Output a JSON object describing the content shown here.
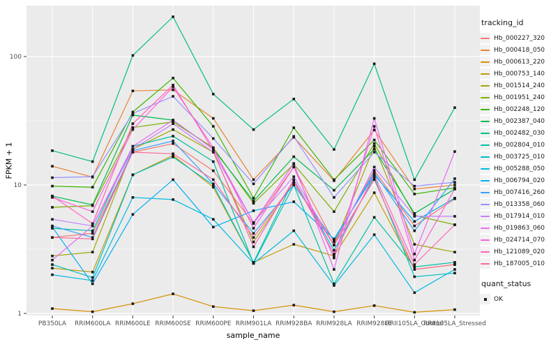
{
  "chart_data": {
    "type": "line",
    "title": "",
    "xlabel": "sample_name",
    "ylabel": "FPKM + 1",
    "y_scale": "log10",
    "ylim": [
      0.95,
      260
    ],
    "y_ticks": [
      1,
      10,
      100
    ],
    "y_minor_ticks": [
      3.1623,
      31.623
    ],
    "grid": true,
    "panel_bg": "#EBEBEB",
    "grid_color": "#FFFFFF",
    "tick_label_color": "#4D4D4D",
    "point_color": "#1a1a1a",
    "point_shape": "filled-square",
    "categories": [
      "PB350LA",
      "RRIM600LA",
      "RRIM600LE",
      "RRIM600SE",
      "RRIM600PE",
      "RRIM901LA",
      "RRIM928BA",
      "RRIM928LA",
      "RRIM928LE",
      "RRII105LA_Control",
      "RRII105LA_Stressed"
    ],
    "legend": {
      "color_title": "tracking_id",
      "shape_title": "quant_status",
      "shape_items": [
        {
          "label": "OK",
          "marker": "black-square"
        }
      ],
      "position": "right"
    },
    "series": [
      {
        "name": "Hb_000227_320",
        "color": "#F8766D",
        "values": [
          3.9,
          4.2,
          18,
          21,
          12.9,
          5.0,
          13.8,
          3.6,
          13,
          4.8,
          7.8
        ]
      },
      {
        "name": "Hb_000418_050",
        "color": "#EA8331",
        "values": [
          14,
          11.5,
          54,
          55,
          33,
          11,
          23.5,
          10.8,
          26.8,
          9.3,
          10
        ]
      },
      {
        "name": "Hb_000613_220",
        "color": "#D89000",
        "values": [
          1.09,
          1.03,
          1.19,
          1.42,
          1.13,
          1.05,
          1.16,
          1.03,
          1.15,
          1.02,
          1.07
        ]
      },
      {
        "name": "Hb_000753_140",
        "color": "#C09B00",
        "values": [
          2.25,
          2.1,
          12,
          17,
          9.6,
          2.5,
          3.45,
          2.8,
          8.7,
          2.2,
          2.4
        ]
      },
      {
        "name": "Hb_001514_240",
        "color": "#A3A500",
        "values": [
          2.8,
          3.0,
          19,
          27,
          18,
          3.6,
          10.5,
          3.4,
          20,
          3.45,
          3.0
        ]
      },
      {
        "name": "Hb_001951_240",
        "color": "#7CAE00",
        "values": [
          6.7,
          6.9,
          28,
          31,
          19.5,
          7.2,
          14.5,
          6.2,
          21,
          5.8,
          4.9
        ]
      },
      {
        "name": "Hb_002248_120",
        "color": "#39B600",
        "values": [
          9.8,
          9.6,
          37,
          68,
          28.6,
          7.9,
          27.9,
          11,
          22.4,
          8.5,
          9.5
        ]
      },
      {
        "name": "Hb_002387_040",
        "color": "#00BB4E",
        "values": [
          8.2,
          7.0,
          35,
          32,
          19,
          7.5,
          16.6,
          9.1,
          19,
          6.0,
          9.3
        ]
      },
      {
        "name": "Hb_002482_030",
        "color": "#00BF7D",
        "values": [
          18.5,
          15.2,
          102,
          204,
          51,
          27,
          46.7,
          18.9,
          87.8,
          11,
          40
        ]
      },
      {
        "name": "Hb_002804_010",
        "color": "#00C1A3",
        "values": [
          4.6,
          4.4,
          20,
          24,
          15.2,
          2.45,
          10,
          1.7,
          5.6,
          2.3,
          2.5
        ]
      },
      {
        "name": "Hb_003725_010",
        "color": "#00BFC4",
        "values": [
          2.4,
          1.9,
          12,
          16.5,
          10,
          2.5,
          11,
          3.1,
          11.5,
          1.93,
          2.06
        ]
      },
      {
        "name": "Hb_005288_050",
        "color": "#00BAE0",
        "values": [
          2.0,
          1.8,
          8,
          7.7,
          5.4,
          2.45,
          4.4,
          1.65,
          4.1,
          1.45,
          2.2
        ]
      },
      {
        "name": "Hb_006794_020",
        "color": "#00B0F6",
        "values": [
          4.7,
          1.7,
          5.9,
          11,
          4.7,
          6.3,
          7.4,
          3.8,
          12,
          5.2,
          7.9
        ]
      },
      {
        "name": "Hb_007416_260",
        "color": "#35A2FF",
        "values": [
          4.8,
          3.9,
          18.5,
          22,
          10.2,
          4.2,
          10,
          3.7,
          12.5,
          4.4,
          11.2
        ]
      },
      {
        "name": "Hb_013358_060",
        "color": "#9590FF",
        "values": [
          11.4,
          11.6,
          36,
          49,
          23,
          10.2,
          23.9,
          8.0,
          18,
          9.8,
          10.5
        ]
      },
      {
        "name": "Hb_017914_010",
        "color": "#C77CFF",
        "values": [
          5.4,
          4.8,
          19,
          30,
          18,
          5.1,
          11.6,
          3.4,
          13.8,
          5.7,
          5.7
        ]
      },
      {
        "name": "Hb_019863_060",
        "color": "#E76BF3",
        "values": [
          2.6,
          4.8,
          20,
          32,
          19,
          5.1,
          14.7,
          2.2,
          33,
          2.9,
          18.2
        ]
      },
      {
        "name": "Hb_024714_070",
        "color": "#FA62DB",
        "values": [
          8.0,
          6.2,
          27,
          58,
          19.5,
          4.6,
          13.8,
          2.7,
          28.6,
          2.6,
          9.3
        ]
      },
      {
        "name": "Hb_121089_020",
        "color": "#FF62BC",
        "values": [
          8.2,
          5.0,
          30,
          60,
          18.5,
          3.3,
          11,
          2.9,
          12,
          2.4,
          4.9
        ]
      },
      {
        "name": "Hb_187005_010",
        "color": "#FF6A98",
        "values": [
          3.9,
          3.8,
          18,
          17.5,
          11,
          3.9,
          10.5,
          3.4,
          11,
          2.2,
          2.4
        ]
      }
    ]
  }
}
